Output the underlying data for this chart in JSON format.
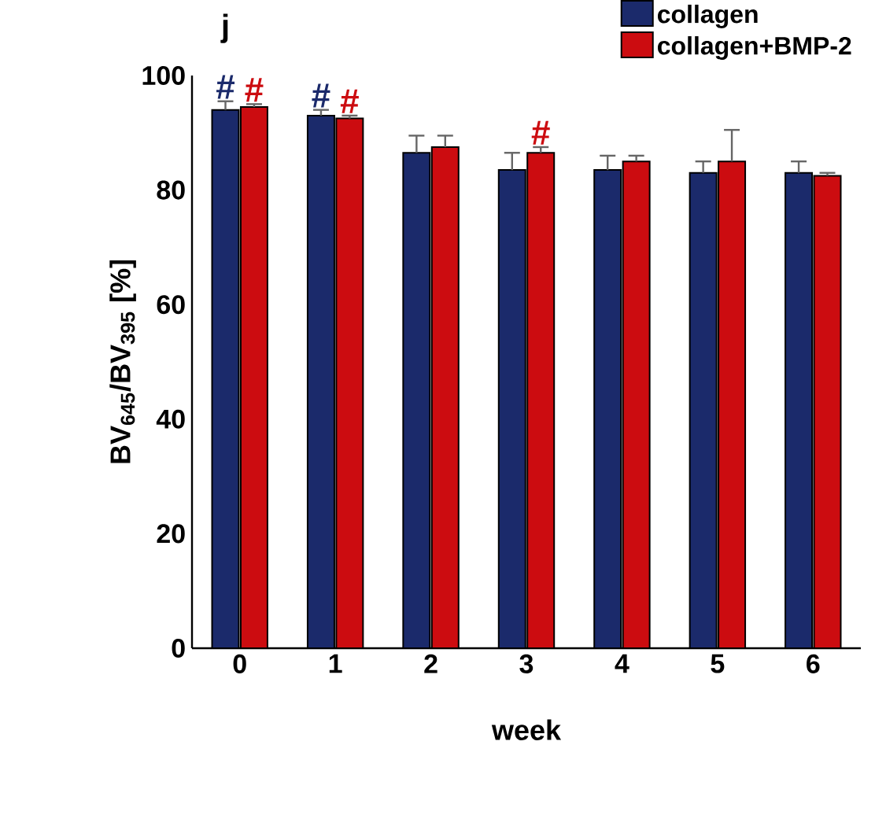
{
  "chart_data": {
    "type": "bar",
    "xlabel": "week",
    "ylabel": "BV$_{645}$/BV$_{395}$ [%]",
    "categories": [
      "0",
      "1",
      "2",
      "3",
      "4",
      "5",
      "6"
    ],
    "series": [
      {
        "name": "collagen",
        "color": "#1b2a6b",
        "values": [
          94,
          93,
          86.5,
          83.5,
          83.5,
          83,
          83
        ],
        "errors": [
          1.5,
          1,
          3,
          3,
          2.5,
          2,
          2
        ],
        "value_labels": [
          "#",
          "#",
          null,
          null,
          null,
          null,
          null
        ]
      },
      {
        "name": "collagen+BMP-2",
        "color": "#cc0c10",
        "values": [
          94.5,
          92.5,
          87.5,
          86.5,
          85,
          85,
          82.5
        ],
        "errors": [
          0.5,
          0.5,
          2,
          1,
          1,
          5.5,
          0.5
        ],
        "value_labels": [
          "#",
          "#",
          null,
          "#",
          null,
          null,
          null
        ]
      }
    ],
    "annotations": [
      "j"
    ],
    "ylim": [
      0,
      100
    ],
    "yticks": [
      0,
      20,
      40,
      60,
      80,
      100
    ],
    "legend": "top right",
    "grid": false
  }
}
